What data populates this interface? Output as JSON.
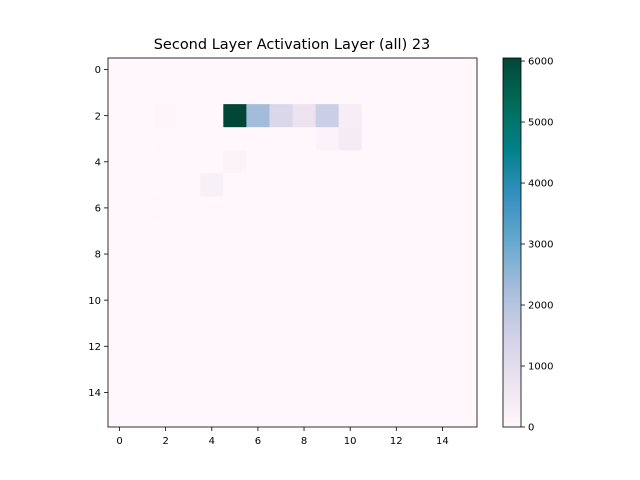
{
  "chart_data": {
    "type": "heatmap",
    "title": "Second Layer Activation Layer (all) 23",
    "xlabel": "",
    "ylabel": "",
    "grid": false,
    "colormap": "PuBuGn",
    "colormap_stops": [
      "#fff7fb",
      "#ece2f0",
      "#d0d1e6",
      "#a6bddb",
      "#67a9cf",
      "#3690c0",
      "#02818a",
      "#016c59",
      "#014636"
    ],
    "rows": 16,
    "cols": 16,
    "xlim": [
      -0.5,
      15.5
    ],
    "ylim": [
      15.5,
      -0.5
    ],
    "x_ticks": [
      0,
      2,
      4,
      6,
      8,
      10,
      12,
      14
    ],
    "y_ticks": [
      0,
      2,
      4,
      6,
      8,
      10,
      12,
      14
    ],
    "colorbar": {
      "vmin": 0,
      "vmax": 6050,
      "ticks": [
        0,
        1000,
        2000,
        3000,
        4000,
        5000,
        6000
      ]
    },
    "cells": [
      {
        "row": 2,
        "col": 5,
        "value": 6050
      },
      {
        "row": 2,
        "col": 6,
        "value": 2300
      },
      {
        "row": 2,
        "col": 7,
        "value": 1250
      },
      {
        "row": 2,
        "col": 8,
        "value": 750
      },
      {
        "row": 2,
        "col": 9,
        "value": 1600
      },
      {
        "row": 2,
        "col": 10,
        "value": 350
      },
      {
        "row": 2,
        "col": 2,
        "value": 80
      },
      {
        "row": 3,
        "col": 2,
        "value": 40
      },
      {
        "row": 3,
        "col": 9,
        "value": 150
      },
      {
        "row": 3,
        "col": 10,
        "value": 450
      },
      {
        "row": 4,
        "col": 5,
        "value": 130
      },
      {
        "row": 5,
        "col": 4,
        "value": 260
      },
      {
        "row": 6,
        "col": 2,
        "value": 30
      }
    ]
  }
}
